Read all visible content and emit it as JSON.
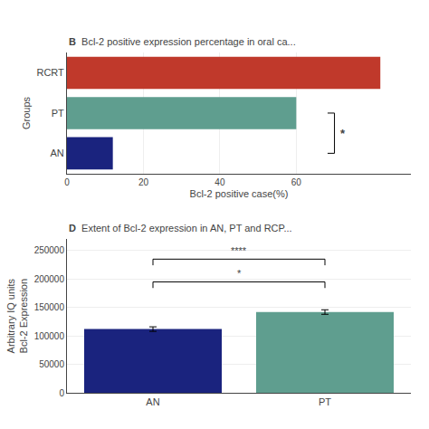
{
  "chart_data": [
    {
      "type": "bar",
      "orientation": "horizontal",
      "title": "Bcl-2 positive expression percentage in oral ca...",
      "xlabel": "Bcl-2 positive case(%)",
      "ylabel": "Groups",
      "categories": [
        "AN",
        "PT",
        "RCRT"
      ],
      "values": [
        12,
        60,
        82
      ],
      "colors": [
        "#1a237e",
        "#5f9e8f",
        "#c0392b"
      ],
      "xlim": [
        0,
        90
      ],
      "xticks": [
        0,
        20,
        40,
        60
      ],
      "annotations": [
        {
          "text": "B"
        },
        {
          "text": "*",
          "categories": [
            "AN",
            "PT"
          ],
          "x": 70
        }
      ]
    },
    {
      "type": "bar",
      "title": "Extent of Bcl-2 expression in AN, PT and RCP...",
      "ylabel": "Arbitrary IQ units\nBcl-2 Expression",
      "categories": [
        "AN",
        "PT"
      ],
      "values": [
        112000,
        142000
      ],
      "errors": [
        4000,
        4000
      ],
      "colors": [
        "#1a237e",
        "#5f9e8f"
      ],
      "ylim": [
        0,
        270000
      ],
      "yticks": [
        0,
        50000,
        100000,
        150000,
        200000,
        250000
      ],
      "annotations": [
        {
          "text": "D"
        },
        {
          "text": "*",
          "categories": [
            "AN",
            "PT"
          ],
          "y": 195000
        },
        {
          "text": "****",
          "categories": [
            "AN",
            "PT"
          ],
          "y": 235000
        }
      ]
    }
  ]
}
